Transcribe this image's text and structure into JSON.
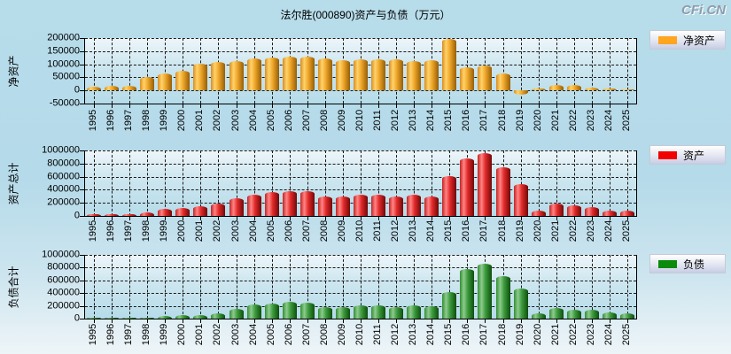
{
  "ui": {
    "title": "法尔胜(000890)资产与负债（万元）",
    "logo": "CFi.CN"
  },
  "chart_data": [
    {
      "type": "bar",
      "name": "net-assets",
      "ylabel": "净资产",
      "legend": "净资产",
      "unit": "万元",
      "grid": true,
      "legend_position": "top-right-outside",
      "ylim": [
        -50000,
        200000
      ],
      "yticks": [
        200000,
        150000,
        100000,
        50000,
        0,
        -50000
      ],
      "colors": {
        "legend": "#ffa51e",
        "edge": "#d98d1f",
        "highlight": "#ffd36b",
        "mid": "#efa62a",
        "dark": "#955e04"
      },
      "categories": [
        "1995",
        "1996",
        "1997",
        "1998",
        "1999",
        "2000",
        "2001",
        "2002",
        "2003",
        "2004",
        "2005",
        "2006",
        "2007",
        "2008",
        "2009",
        "2010",
        "2011",
        "2012",
        "2013",
        "2014",
        "2015",
        "2016",
        "2017",
        "2018",
        "2019",
        "2020",
        "2021",
        "2022",
        "2023",
        "2024",
        "2025"
      ],
      "values": [
        14000,
        17000,
        19000,
        52000,
        65000,
        74000,
        101000,
        110000,
        113000,
        121000,
        126000,
        129000,
        129000,
        122000,
        114000,
        120000,
        120000,
        118000,
        111000,
        115000,
        197000,
        88000,
        95000,
        64000,
        -17000,
        6000,
        20000,
        20000,
        12000,
        6000,
        5000
      ]
    },
    {
      "type": "bar",
      "name": "total-assets",
      "ylabel": "资产总计",
      "legend": "资产",
      "unit": "万元",
      "grid": true,
      "legend_position": "top-right-outside",
      "ylim": [
        0,
        1000000
      ],
      "yticks": [
        1000000,
        800000,
        600000,
        400000,
        200000,
        0
      ],
      "colors": {
        "legend": "#f20000",
        "edge": "#c32222",
        "highlight": "#ff8585",
        "mid": "#e32a2a",
        "dark": "#700808"
      },
      "categories": [
        "1995",
        "1996",
        "1997",
        "1998",
        "1999",
        "2000",
        "2001",
        "2002",
        "2003",
        "2004",
        "2005",
        "2006",
        "2007",
        "2008",
        "2009",
        "2010",
        "2011",
        "2012",
        "2013",
        "2014",
        "2015",
        "2016",
        "2017",
        "2018",
        "2019",
        "2020",
        "2021",
        "2022",
        "2023",
        "2024",
        "2025"
      ],
      "values": [
        22000,
        26000,
        30000,
        58000,
        103000,
        117000,
        153000,
        193000,
        270000,
        330000,
        360000,
        373000,
        373000,
        301000,
        293000,
        328000,
        319000,
        293000,
        319000,
        297000,
        611000,
        881000,
        966000,
        742000,
        481000,
        85000,
        184000,
        166000,
        139000,
        76000,
        85000
      ]
    },
    {
      "type": "bar",
      "name": "total-liabilities",
      "ylabel": "负债合计",
      "legend": "负债",
      "unit": "万元",
      "grid": true,
      "legend_position": "top-right-outside",
      "ylim": [
        0,
        1000000
      ],
      "yticks": [
        1000000,
        800000,
        600000,
        400000,
        200000,
        0
      ],
      "colors": {
        "legend": "#0b8a0b",
        "edge": "#2f8f2f",
        "highlight": "#90ca90",
        "mid": "#3d9c3d",
        "dark": "#0d4f0d"
      },
      "categories": [
        "1995",
        "1996",
        "1997",
        "1998",
        "1999",
        "2000",
        "2001",
        "2002",
        "2003",
        "2004",
        "2005",
        "2006",
        "2007",
        "2008",
        "2009",
        "2010",
        "2011",
        "2012",
        "2013",
        "2014",
        "2015",
        "2016",
        "2017",
        "2018",
        "2019",
        "2020",
        "2021",
        "2022",
        "2023",
        "2024",
        "2025"
      ],
      "values": [
        9000,
        10000,
        12000,
        10000,
        41000,
        55000,
        57000,
        83000,
        152000,
        216000,
        240000,
        260000,
        255000,
        185000,
        185000,
        212000,
        205000,
        185000,
        207000,
        189000,
        419000,
        782000,
        860000,
        672000,
        478000,
        78000,
        161000,
        143000,
        133000,
        97000,
        78000
      ]
    }
  ]
}
